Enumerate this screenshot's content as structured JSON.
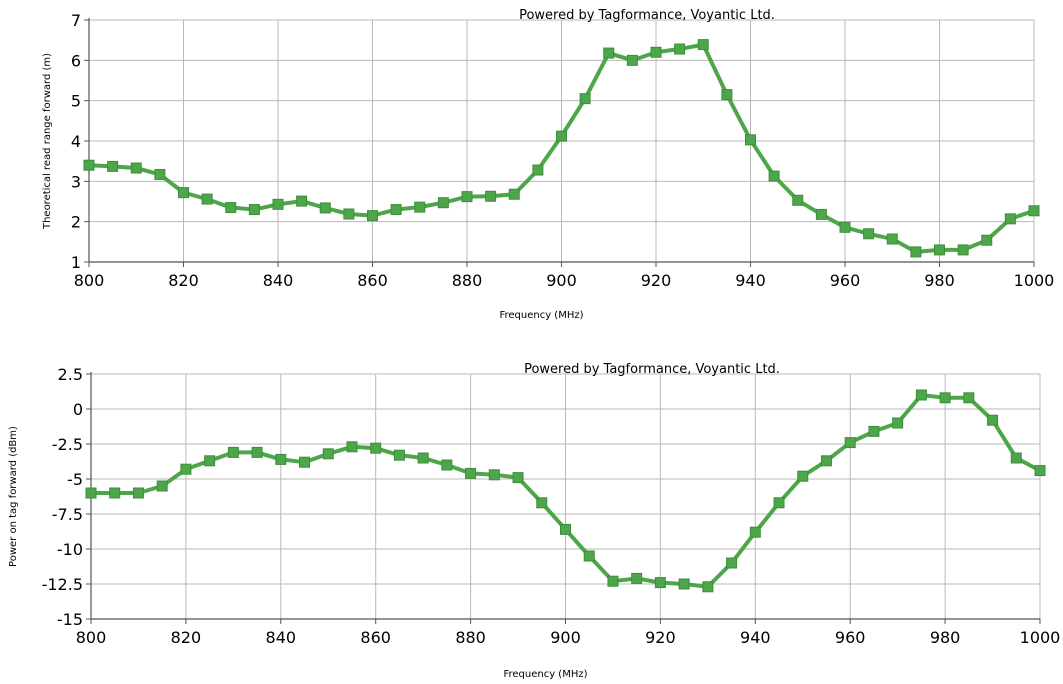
{
  "chart_data": [
    {
      "type": "line",
      "watermark": "Powered by Tagformance, Voyantic Ltd.",
      "xlabel": "Frequency (MHz)",
      "ylabel": "Theoretical read range forward (m)",
      "xlim": [
        800,
        1000
      ],
      "ylim": [
        1,
        7
      ],
      "xticks": [
        800,
        820,
        840,
        860,
        880,
        900,
        920,
        940,
        960,
        980,
        1000
      ],
      "yticks": [
        1,
        2,
        3,
        4,
        5,
        6,
        7
      ],
      "ytick_labels": [
        "1",
        "2",
        "3",
        "4",
        "5",
        "6",
        "7"
      ],
      "grid": true,
      "color": "#4ea64a",
      "marker": "square",
      "x": [
        800,
        805,
        810,
        815,
        820,
        825,
        830,
        835,
        840,
        845,
        850,
        855,
        860,
        865,
        870,
        875,
        880,
        885,
        890,
        895,
        900,
        905,
        910,
        915,
        920,
        925,
        930,
        935,
        940,
        945,
        950,
        955,
        960,
        965,
        970,
        975,
        980,
        985,
        990,
        995,
        1000
      ],
      "y": [
        3.4,
        3.37,
        3.33,
        3.17,
        2.72,
        2.56,
        2.35,
        2.3,
        2.43,
        2.51,
        2.34,
        2.19,
        2.15,
        2.3,
        2.36,
        2.47,
        2.62,
        2.63,
        2.68,
        3.28,
        4.12,
        5.05,
        6.18,
        6.0,
        6.2,
        6.28,
        6.39,
        5.15,
        4.03,
        3.13,
        2.53,
        2.18,
        1.86,
        1.7,
        1.57,
        1.25,
        1.3,
        1.3,
        1.54,
        2.07,
        2.27
      ]
    },
    {
      "type": "line",
      "watermark": "Powered by Tagformance, Voyantic Ltd.",
      "xlabel": "Frequency (MHz)",
      "ylabel": "Power on tag forward (dBm)",
      "xlim": [
        800,
        1000
      ],
      "ylim": [
        -15,
        2.5
      ],
      "xticks": [
        800,
        820,
        840,
        860,
        880,
        900,
        920,
        940,
        960,
        980,
        1000
      ],
      "yticks": [
        2.5,
        0,
        -2.5,
        -5,
        -7.5,
        -10,
        -12.5,
        -15
      ],
      "ytick_labels": [
        "2.5",
        "0",
        "-2.5",
        "-5",
        "-7.5",
        "-10",
        "-12.5",
        "-15"
      ],
      "grid": true,
      "color": "#4ea64a",
      "marker": "square",
      "x": [
        800,
        805,
        810,
        815,
        820,
        825,
        830,
        835,
        840,
        845,
        850,
        855,
        860,
        865,
        870,
        875,
        880,
        885,
        890,
        895,
        900,
        905,
        910,
        915,
        920,
        925,
        930,
        935,
        940,
        945,
        950,
        955,
        960,
        965,
        970,
        975,
        980,
        985,
        990,
        995,
        1000
      ],
      "y": [
        -6.0,
        -6.0,
        -6.0,
        -5.5,
        -4.3,
        -3.7,
        -3.1,
        -3.1,
        -3.6,
        -3.8,
        -3.2,
        -2.7,
        -2.8,
        -3.3,
        -3.5,
        -4.0,
        -4.6,
        -4.7,
        -4.9,
        -6.7,
        -8.6,
        -10.5,
        -12.3,
        -12.1,
        -12.4,
        -12.5,
        -12.7,
        -11.0,
        -8.8,
        -6.7,
        -4.8,
        -3.7,
        -2.4,
        -1.6,
        -1.0,
        1.0,
        0.8,
        0.8,
        -0.8,
        -3.5,
        -4.4
      ]
    }
  ]
}
